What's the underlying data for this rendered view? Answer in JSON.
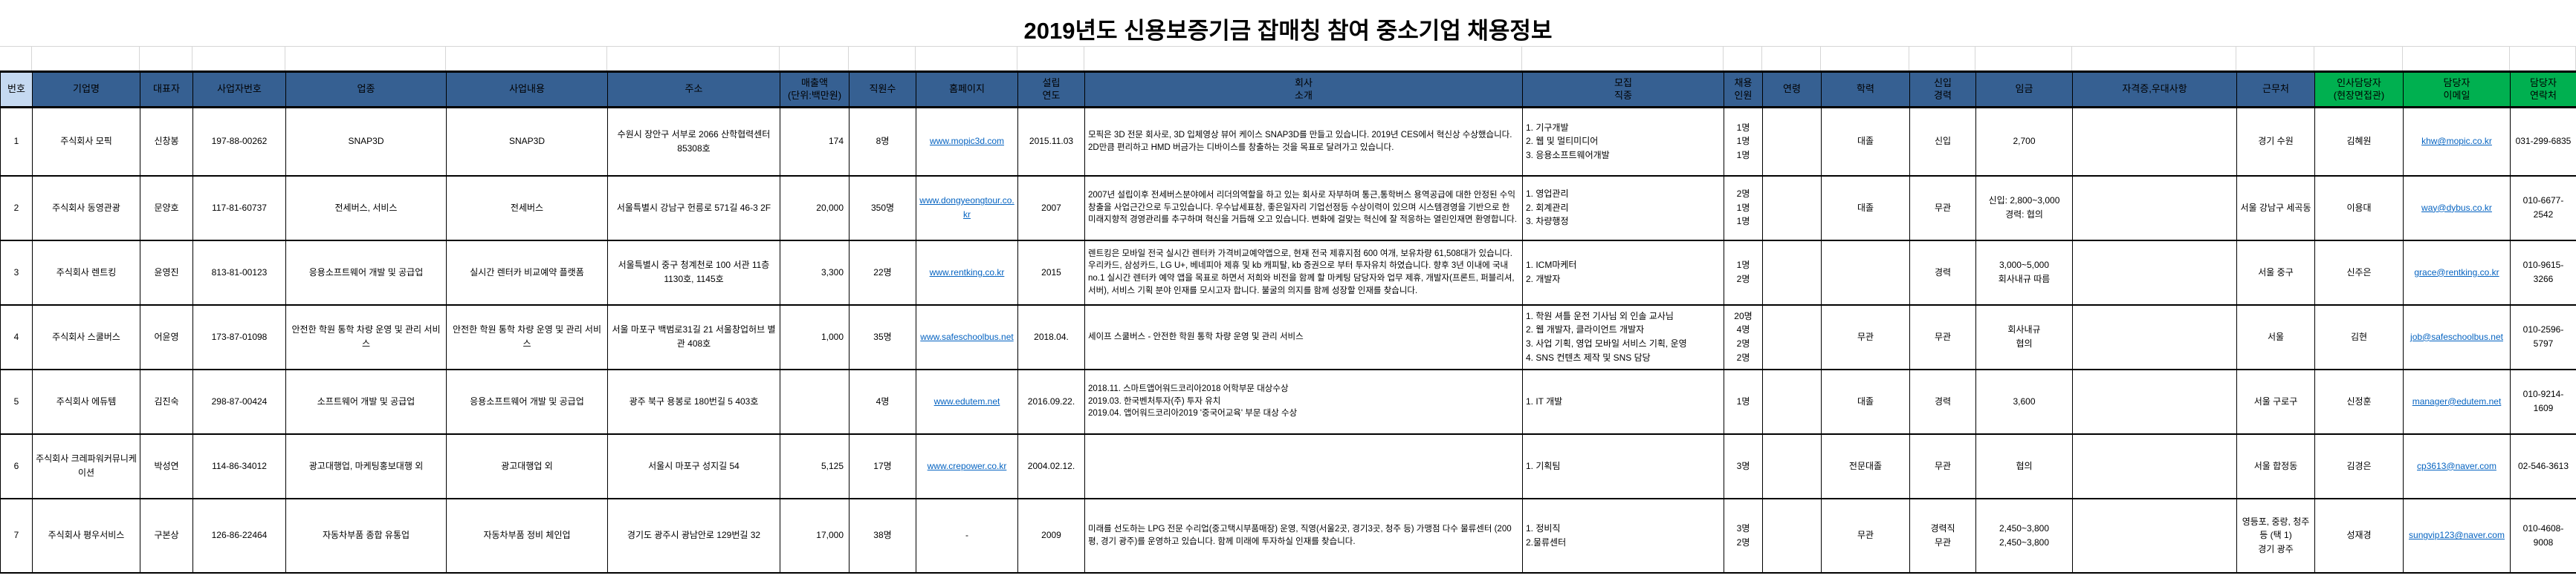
{
  "title": "2019년도 신용보증기금 잡매칭 참여 중소기업 채용정보",
  "colors": {
    "header_blue": "#366092",
    "header_light_blue": "#C5D9F1",
    "header_green": "#00B050",
    "link_blue": "#0563C1"
  },
  "table": {
    "columns": [
      {
        "key": "no",
        "label": "번호",
        "type": "light"
      },
      {
        "key": "company",
        "label": "기업명",
        "type": "blue"
      },
      {
        "key": "ceo",
        "label": "대표자",
        "type": "blue"
      },
      {
        "key": "biz_no",
        "label": "사업자번호",
        "type": "blue"
      },
      {
        "key": "industry",
        "label": "업종",
        "type": "blue"
      },
      {
        "key": "business",
        "label": "사업내용",
        "type": "blue"
      },
      {
        "key": "address",
        "label": "주소",
        "type": "blue"
      },
      {
        "key": "revenue",
        "label": "매출액\n(단위:백만원)",
        "type": "blue"
      },
      {
        "key": "employees",
        "label": "직원수",
        "type": "blue"
      },
      {
        "key": "homepage",
        "label": "홈페이지",
        "type": "blue"
      },
      {
        "key": "founded",
        "label": "설립\n연도",
        "type": "blue"
      },
      {
        "key": "intro",
        "label": "회사\n소개",
        "type": "blue"
      },
      {
        "key": "positions",
        "label": "모집\n직종",
        "type": "blue"
      },
      {
        "key": "headcount",
        "label": "채용\n인원",
        "type": "blue"
      },
      {
        "key": "age",
        "label": "연령",
        "type": "blue"
      },
      {
        "key": "education",
        "label": "학력",
        "type": "blue"
      },
      {
        "key": "career",
        "label": "신입\n경력",
        "type": "blue"
      },
      {
        "key": "salary",
        "label": "임금",
        "type": "blue"
      },
      {
        "key": "qualification",
        "label": "자격증,우대사항",
        "type": "blue"
      },
      {
        "key": "workplace",
        "label": "근무처",
        "type": "blue"
      },
      {
        "key": "hr_manager",
        "label": "인사담당자\n(현장면접관)",
        "type": "green"
      },
      {
        "key": "email",
        "label": "담당자\n이메일",
        "type": "green"
      },
      {
        "key": "phone",
        "label": "담당자\n연락처",
        "type": "green"
      }
    ],
    "rows": [
      {
        "no": "1",
        "company": "주식회사 모픽",
        "ceo": "신창봉",
        "biz_no": "197-88-00262",
        "industry": "SNAP3D",
        "business": "SNAP3D",
        "address": "수원시 장안구 서부로 2066 산학협력센터 85308호",
        "revenue": "174",
        "employees": "8명",
        "homepage": "www.mopic3d.com",
        "founded": "2015.11.03",
        "intro": "모픽은 3D 전문 회사로, 3D 입체영상 뷰어 케이스 SNAP3D를 만들고 있습니다. 2019년 CES에서 혁신상 수상했습니다. 2D만큼 편리하고 HMD 버금가는 디바이스를 창출하는 것을 목표로 달려가고 있습니다.",
        "positions": "1. 기구개발\n2. 웹 및 멀티미디어\n3. 응용소프트웨어개발",
        "headcount": "1명\n1명\n1명",
        "age": "",
        "education": "대졸",
        "career": "신입",
        "salary": "2,700",
        "qualification": "",
        "workplace": "경기 수원",
        "hr_manager": "김혜원",
        "email": "khw@mopic.co.kr",
        "phone": "031-299-6835"
      },
      {
        "no": "2",
        "company": "주식회사 동영관광",
        "ceo": "문양호",
        "biz_no": "117-81-60737",
        "industry": "전세버스, 서비스",
        "business": "전세버스",
        "address": "서울특별시 강남구 헌릉로 571길 46-3 2F",
        "revenue": "20,000",
        "employees": "350명",
        "homepage": "www.dongyeongtour.co.kr",
        "founded": "2007",
        "intro": "2007년 설립이후 전세버스분야에서 리더의역할을 하고 있는 회사로 자부하며 통근,통학버스 용역공급에 대한 안정된 수익창출을 사업근간으로 두고있습니다. 우수납세표창, 좋은일자리 기업선정등 수상이력이 있으며 시스템경영을 기반으로 한 미래지향적 경영관리를 추구하며 혁신을 거듭해 오고 있습니다. 변화에 걸맞는 혁신에 잘 적응하는 열린인재면 환영합니다.",
        "positions": "1. 영업관리\n2. 회계관리\n3. 차량행정",
        "headcount": "2명\n1명\n1명",
        "age": "",
        "education": "대졸",
        "career": "무관",
        "salary": "신입: 2,800~3,000\n경력: 협의",
        "qualification": "",
        "workplace": "서울 강남구 세곡동",
        "hr_manager": "이용대",
        "email": "way@dybus.co.kr",
        "phone": "010-6677-2542"
      },
      {
        "no": "3",
        "company": "주식회사 렌트킹",
        "ceo": "윤영진",
        "biz_no": "813-81-00123",
        "industry": "응용소프트웨어 개발 및 공급업",
        "business": "실시간 렌터카 비교예약 플랫폼",
        "address": "서울특별시 중구 청계천로 100 서관 11층 1130호, 1145호",
        "revenue": "3,300",
        "employees": "22명",
        "homepage": "www.rentking.co.kr",
        "founded": "2015",
        "intro": "렌트킹은 모바일 전국 실시간 렌터카 가격비교예약앱으로, 현재 전국 제휴지점 600 여개, 보유차량 61,508대가 있습니다. 우리카드, 삼성카드, LG U+, 베네피아 제휴 및 kb 캐피탈, kb 증권으로 부터 투자유치 하였습니다. 향후 3년 이내에 국내 no.1 실시간 렌터카 예약 앱을 목표로 하면서 저희와 비전을 함께 할 마케팅 담당자와 업무 제휴, 개발자(프론트, 퍼블리셔, 서버), 서비스 기획 분야 인재를 모시고자 합니다. 불굴의 의지를 함께 성장할 인재를 찾습니다.",
        "positions": "1. ICM마케터\n2. 개발자",
        "headcount": "1명\n2명",
        "age": "",
        "education": "",
        "career": "경력",
        "salary": "3,000~5,000\n회사내규 따름",
        "qualification": "",
        "workplace": "서울 중구",
        "hr_manager": "신주은",
        "email": "grace@rentking.co.kr",
        "phone": "010-9615-3266"
      },
      {
        "no": "4",
        "company": "주식회사 스쿨버스",
        "ceo": "어윤영",
        "biz_no": "173-87-01098",
        "industry": "안전한 학원 통학 차량 운영 및 관리 서비스",
        "business": "안전한 학원 통학 차량 운영 및 관리 서비스",
        "address": "서울 마포구 백범로31길 21 서울창업허브 별관 408호",
        "revenue": "1,000",
        "employees": "35명",
        "homepage": "www.safeschoolbus.net",
        "founded": "2018.04.",
        "intro": "세이프 스쿨버스 - 안전한 학원 통학 차량 운영 및 관리 서비스",
        "positions": "1. 학원 셔틀 운전 기사님 외 인솔 교사님\n2. 웹 개발자, 클라이언트 개발자\n3. 사업 기획, 영업 모바일 서비스 기획, 운영\n4. SNS 컨텐츠 제작 및 SNS 담당",
        "headcount": "20명\n4명\n2명\n2명",
        "age": "",
        "education": "무관",
        "career": "무관",
        "salary": "회사내규\n협의",
        "qualification": "",
        "workplace": "서울",
        "hr_manager": "김현",
        "email": "job@safeschoolbus.net",
        "phone": "010-2596-5797"
      },
      {
        "no": "5",
        "company": "주식회사 에듀템",
        "ceo": "김진숙",
        "biz_no": "298-87-00424",
        "industry": "소프트웨어 개발 및 공급업",
        "business": "응용소프트웨어 개발 및 공급업",
        "address": "광주 북구 용봉로 180번길 5 403호",
        "revenue": "",
        "employees": "4명",
        "homepage": "www.edutem.net",
        "founded": "2016.09.22.",
        "intro": "2018.11. 스마트앱어워드코리아2018 어학부문 대상수상\n2019.03. 한국벤처투자(주) 투자 유치\n2019.04. 앱어워드코리아2019 '중국어교육' 부문 대상 수상",
        "positions": "1. IT 개발",
        "headcount": "1명",
        "age": "",
        "education": "대졸",
        "career": "경력",
        "salary": "3,600",
        "qualification": "",
        "workplace": "서울 구로구",
        "hr_manager": "신정훈",
        "email": "manager@edutem.net",
        "phone": "010-9214-1609"
      },
      {
        "no": "6",
        "company": "주식회사 크레파워커뮤니케이션",
        "ceo": "박성연",
        "biz_no": "114-86-34012",
        "industry": "광고대행업, 마케팅홍보대행 외",
        "business": "광고대행업 외",
        "address": "서울시 마포구 성지길 54",
        "revenue": "5,125",
        "employees": "17명",
        "homepage": "www.crepower.co.kr",
        "founded": "2004.02.12.",
        "intro": "",
        "positions": "1. 기획팀",
        "headcount": "3명",
        "age": "",
        "education": "전문대졸",
        "career": "무관",
        "salary": "협의",
        "qualification": "",
        "workplace": "서울 합정동",
        "hr_manager": "김경은",
        "email": "cp3613@naver.com",
        "phone": "02-546-3613"
      },
      {
        "no": "7",
        "company": "주식회사 평우서비스",
        "ceo": "구본상",
        "biz_no": "126-86-22464",
        "industry": "자동차부품 종합 유통업",
        "business": "자동차부품 정비 체인업",
        "address": "경기도 광주시 광남안로 129번길 32",
        "revenue": "17,000",
        "employees": "38명",
        "homepage": "-",
        "founded": "2009",
        "intro": "미래를 선도하는 LPG 전문 수리업(중고택시부품매장) 운영, 직영(서울2곳, 경기3곳, 청주 등) 가맹점 다수 물류센터 (200평, 경기 광주)를 운영하고 있습니다. 함께 미래에 투자하실 인재를 찾습니다.",
        "positions": "1. 정비직\n2.물류센터",
        "headcount": "3명\n2명",
        "age": "",
        "education": "무관",
        "career": "경력직\n무관",
        "salary": "2,450~3,800\n2,450~3,800",
        "qualification": "",
        "workplace": "영등포, 중랑, 청주 등 (택 1)\n경기 광주",
        "hr_manager": "성재경",
        "email": "sungvip123@naver.com",
        "phone": "010-4608-9008"
      }
    ]
  }
}
